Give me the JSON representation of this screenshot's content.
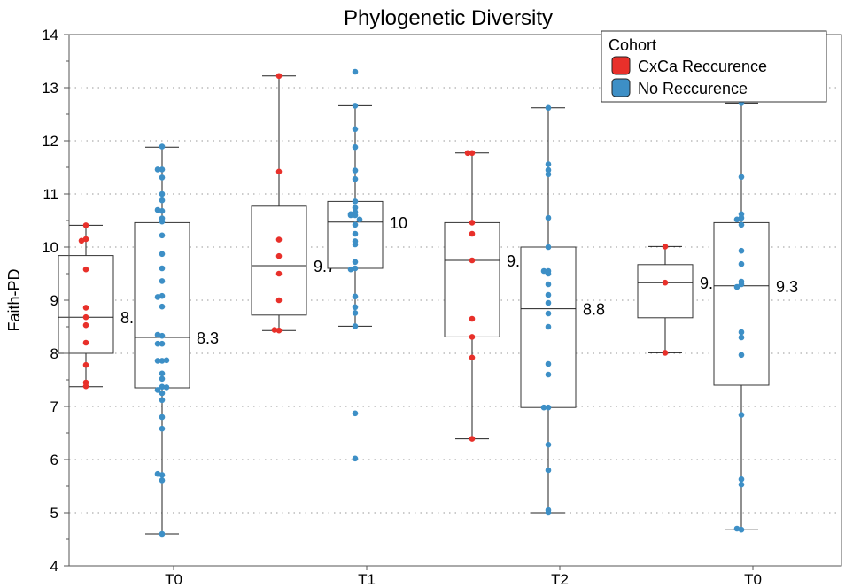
{
  "chart_data": {
    "type": "box",
    "title": "Phylogenetic Diversity",
    "xlabel": "",
    "ylabel": "Faith-PD",
    "ylim": [
      4,
      14
    ],
    "yticks": [
      4,
      5,
      6,
      7,
      8,
      9,
      10,
      11,
      12,
      13,
      14
    ],
    "grid": "horizontal dotted",
    "categories": [
      "T0",
      "T1",
      "T2",
      "T0"
    ],
    "legend": {
      "title": "Cohort",
      "position": "top-right"
    },
    "series": [
      {
        "name": "CxCa Reccurence",
        "color": "#e8302a",
        "boxes": [
          {
            "min": 7.37,
            "q1": 8.0,
            "median": 8.68,
            "q3": 9.84,
            "max": 10.41,
            "label": "8.7",
            "points": [
              10.41,
              10.15,
              10.12,
              9.58,
              8.86,
              8.68,
              8.53,
              8.2,
              7.78,
              7.45,
              7.38
            ]
          },
          {
            "min": 8.43,
            "q1": 8.72,
            "median": 9.65,
            "q3": 10.77,
            "max": 13.22,
            "label": "9.7",
            "points": [
              13.22,
              11.42,
              10.14,
              9.83,
              9.5,
              9.0,
              8.43,
              8.44
            ]
          },
          {
            "min": 6.39,
            "q1": 8.31,
            "median": 9.75,
            "q3": 10.46,
            "max": 11.77,
            "label": "9.7",
            "points": [
              11.77,
              11.77,
              10.46,
              10.25,
              9.75,
              8.65,
              8.31,
              7.92,
              6.39
            ]
          },
          {
            "min": 8.01,
            "q1": 8.67,
            "median": 9.33,
            "q3": 9.67,
            "max": 10.01,
            "label": "9.3",
            "points": [
              10.01,
              9.33,
              8.01
            ]
          }
        ]
      },
      {
        "name": "No Reccurence",
        "color": "#3d8fc6",
        "boxes": [
          {
            "min": 4.6,
            "q1": 7.35,
            "median": 8.3,
            "q3": 10.46,
            "max": 11.88,
            "label": "8.3",
            "points": [
              11.89,
              11.46,
              11.46,
              11.31,
              11.0,
              10.88,
              10.68,
              10.7,
              10.54,
              10.48,
              10.22,
              9.87,
              9.6,
              9.36,
              9.08,
              9.06,
              8.88,
              8.33,
              8.35,
              8.18,
              8.18,
              7.86,
              7.86,
              7.87,
              7.62,
              7.52,
              7.37,
              7.31,
              7.36,
              7.25,
              7.12,
              6.8,
              6.58,
              5.71,
              5.73,
              5.61,
              4.6
            ]
          },
          {
            "min": 8.51,
            "q1": 9.6,
            "median": 10.47,
            "q3": 10.86,
            "max": 12.66,
            "label": "10",
            "points": [
              13.3,
              12.66,
              12.22,
              11.88,
              11.44,
              11.28,
              10.86,
              10.74,
              10.66,
              10.6,
              10.6,
              10.62,
              10.52,
              10.42,
              10.25,
              10.11,
              10.05,
              9.72,
              9.6,
              9.58,
              9.07,
              8.87,
              8.76,
              8.51,
              6.87,
              6.02
            ]
          },
          {
            "min": 5.0,
            "q1": 6.98,
            "median": 8.84,
            "q3": 10.0,
            "max": 12.62,
            "label": "8.8",
            "points": [
              12.62,
              11.56,
              11.45,
              11.37,
              10.55,
              10.0,
              9.55,
              9.5,
              9.55,
              9.3,
              9.1,
              8.95,
              8.75,
              8.5,
              7.8,
              7.6,
              6.98,
              6.98,
              6.28,
              5.8,
              5.05,
              5.0
            ]
          },
          {
            "min": 4.68,
            "q1": 7.4,
            "median": 9.27,
            "q3": 10.46,
            "max": 12.71,
            "label": "9.3",
            "points": [
              12.71,
              11.32,
              10.62,
              10.55,
              10.52,
              10.42,
              9.93,
              9.68,
              9.35,
              9.3,
              9.25,
              8.4,
              8.3,
              7.97,
              6.84,
              5.63,
              5.53,
              4.68,
              4.7
            ]
          }
        ]
      }
    ]
  }
}
